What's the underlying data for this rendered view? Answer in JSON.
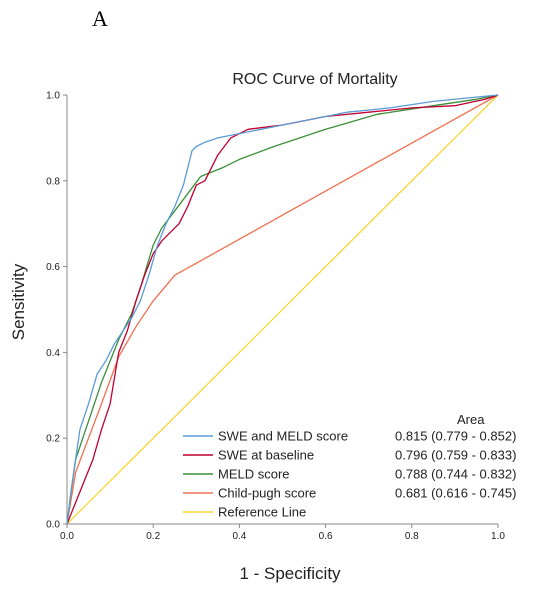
{
  "panel_label": "A",
  "chart_data": {
    "type": "line",
    "title": "ROC Curve of Mortality",
    "xlabel": "1 - Specificity",
    "ylabel": "Sensitivity",
    "xlim": [
      0,
      1
    ],
    "ylim": [
      0,
      1
    ],
    "xticks": [
      "0.0",
      "0.2",
      "0.4",
      "0.6",
      "0.8",
      "1.0"
    ],
    "yticks": [
      "0.0",
      "0.2",
      "0.4",
      "0.6",
      "0.8",
      "1.0"
    ],
    "grid": false,
    "legend_placement": "bottom-right",
    "legend_value_header": "Area",
    "series": [
      {
        "name": "SWE and MELD score",
        "area": "0.815 (0.779 - 0.852)",
        "color": "#5b9bd5",
        "x": [
          0,
          0.01,
          0.02,
          0.03,
          0.05,
          0.07,
          0.09,
          0.11,
          0.13,
          0.15,
          0.17,
          0.19,
          0.21,
          0.23,
          0.25,
          0.27,
          0.29,
          0.3,
          0.32,
          0.35,
          0.4,
          0.45,
          0.55,
          0.65,
          0.75,
          0.85,
          0.95,
          1.0
        ],
        "y": [
          0,
          0.08,
          0.15,
          0.22,
          0.28,
          0.35,
          0.38,
          0.42,
          0.45,
          0.48,
          0.52,
          0.58,
          0.65,
          0.7,
          0.74,
          0.79,
          0.87,
          0.88,
          0.89,
          0.9,
          0.91,
          0.92,
          0.94,
          0.96,
          0.97,
          0.985,
          0.995,
          1.0
        ]
      },
      {
        "name": "SWE at baseline",
        "area": "0.796 (0.759 - 0.833)",
        "color": "#c00030",
        "x": [
          0,
          0.02,
          0.04,
          0.06,
          0.08,
          0.1,
          0.12,
          0.14,
          0.16,
          0.18,
          0.2,
          0.22,
          0.24,
          0.26,
          0.28,
          0.3,
          0.32,
          0.35,
          0.38,
          0.42,
          0.5,
          0.6,
          0.7,
          0.8,
          0.9,
          0.97,
          1.0
        ],
        "y": [
          0,
          0.05,
          0.1,
          0.15,
          0.22,
          0.28,
          0.4,
          0.45,
          0.52,
          0.58,
          0.63,
          0.66,
          0.68,
          0.7,
          0.74,
          0.79,
          0.8,
          0.86,
          0.9,
          0.92,
          0.93,
          0.95,
          0.96,
          0.97,
          0.975,
          0.99,
          1.0
        ]
      },
      {
        "name": "MELD score",
        "area": "0.788 (0.744 - 0.832)",
        "color": "#3a8f3a",
        "x": [
          0,
          0.01,
          0.02,
          0.04,
          0.06,
          0.08,
          0.1,
          0.12,
          0.15,
          0.17,
          0.2,
          0.22,
          0.25,
          0.28,
          0.31,
          0.36,
          0.4,
          0.48,
          0.6,
          0.72,
          0.85,
          0.95,
          1.0
        ],
        "y": [
          0,
          0.08,
          0.15,
          0.21,
          0.27,
          0.33,
          0.38,
          0.43,
          0.49,
          0.55,
          0.65,
          0.69,
          0.73,
          0.77,
          0.81,
          0.83,
          0.85,
          0.88,
          0.92,
          0.955,
          0.975,
          0.99,
          1.0
        ]
      },
      {
        "name": "Child-pugh score",
        "area": "0.681 (0.616 - 0.745)",
        "color": "#f07050",
        "x": [
          0,
          0.02,
          0.05,
          0.08,
          0.12,
          0.16,
          0.2,
          0.25,
          1.0
        ],
        "y": [
          0,
          0.12,
          0.2,
          0.28,
          0.39,
          0.46,
          0.52,
          0.58,
          1.0
        ]
      },
      {
        "name": "Reference Line",
        "area": "",
        "color": "#f5d832",
        "x": [
          0,
          1
        ],
        "y": [
          0,
          1
        ]
      }
    ]
  }
}
